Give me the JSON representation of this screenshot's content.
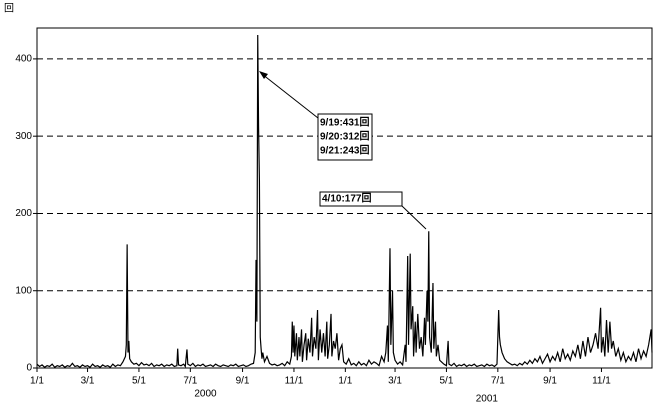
{
  "chart_data": {
    "type": "line",
    "y_unit": "回",
    "xlim": [
      0,
      730
    ],
    "ylim": [
      0,
      440
    ],
    "xticks": [
      {
        "value": 0,
        "label": "1/1"
      },
      {
        "value": 60,
        "label": "3/1"
      },
      {
        "value": 121,
        "label": "5/1"
      },
      {
        "value": 182,
        "label": "7/1"
      },
      {
        "value": 244,
        "label": "9/1"
      },
      {
        "value": 305,
        "label": "11/1"
      },
      {
        "value": 366,
        "label": "1/1"
      },
      {
        "value": 425,
        "label": "3/1"
      },
      {
        "value": 486,
        "label": "5/1"
      },
      {
        "value": 547,
        "label": "7/1"
      },
      {
        "value": 609,
        "label": "9/1"
      },
      {
        "value": 670,
        "label": "11/1"
      }
    ],
    "years": [
      {
        "value": 200,
        "label": "2000"
      },
      {
        "value": 534,
        "label": "2001"
      }
    ],
    "yticks": [
      0,
      100,
      200,
      300,
      400
    ],
    "grid": true,
    "annotations": [
      "9/19:431回",
      "9/20:312回",
      "9/21:243回",
      "4/10:177回"
    ],
    "series": [
      {
        "color": "#000000",
        "x": [
          0,
          3,
          6,
          9,
          12,
          15,
          18,
          21,
          24,
          27,
          30,
          33,
          36,
          39,
          42,
          45,
          48,
          51,
          54,
          57,
          60,
          63,
          66,
          69,
          72,
          75,
          78,
          81,
          84,
          87,
          90,
          93,
          96,
          99,
          102,
          105,
          106,
          107,
          108,
          109,
          110,
          112,
          115,
          118,
          121,
          124,
          127,
          130,
          133,
          136,
          139,
          142,
          145,
          148,
          151,
          154,
          157,
          160,
          163,
          166,
          167,
          168,
          171,
          174,
          176,
          178,
          179,
          182,
          185,
          188,
          191,
          194,
          197,
          200,
          203,
          206,
          209,
          212,
          215,
          218,
          221,
          224,
          227,
          230,
          233,
          236,
          239,
          242,
          245,
          248,
          251,
          254,
          257,
          259,
          260,
          261,
          262,
          263,
          264,
          265,
          266,
          267,
          268,
          270,
          273,
          276,
          279,
          282,
          285,
          288,
          291,
          294,
          297,
          300,
          302,
          303,
          304,
          305,
          306,
          308,
          309,
          311,
          312,
          314,
          315,
          317,
          319,
          320,
          322,
          324,
          326,
          327,
          329,
          331,
          333,
          334,
          336,
          338,
          340,
          342,
          344,
          345,
          347,
          349,
          350,
          352,
          354,
          356,
          358,
          360,
          362,
          364,
          367,
          370,
          373,
          376,
          379,
          382,
          385,
          388,
          391,
          394,
          397,
          400,
          403,
          406,
          409,
          412,
          414,
          416,
          417,
          419,
          420,
          422,
          423,
          425,
          428,
          431,
          434,
          437,
          438,
          440,
          441,
          443,
          444,
          446,
          447,
          449,
          450,
          452,
          454,
          456,
          458,
          460,
          461,
          463,
          464,
          465,
          466,
          468,
          470,
          471,
          473,
          474,
          476,
          478,
          480,
          483,
          486,
          488,
          489,
          492,
          495,
          498,
          501,
          504,
          507,
          510,
          513,
          516,
          519,
          522,
          525,
          528,
          531,
          534,
          537,
          540,
          543,
          546,
          548,
          549,
          550,
          552,
          555,
          558,
          561,
          564,
          567,
          570,
          573,
          576,
          579,
          582,
          585,
          588,
          591,
          594,
          597,
          600,
          603,
          606,
          609,
          612,
          615,
          618,
          621,
          624,
          627,
          630,
          633,
          636,
          639,
          642,
          645,
          648,
          651,
          654,
          657,
          660,
          663,
          666,
          669,
          670,
          672,
          674,
          676,
          678,
          680,
          682,
          684,
          687,
          690,
          693,
          696,
          699,
          702,
          705,
          708,
          711,
          714,
          717,
          720,
          723,
          726,
          729,
          730
        ],
        "values": [
          5,
          2,
          4,
          1,
          3,
          2,
          5,
          1,
          3,
          2,
          4,
          1,
          3,
          2,
          6,
          2,
          3,
          1,
          4,
          2,
          3,
          1,
          5,
          2,
          3,
          1,
          4,
          2,
          3,
          1,
          5,
          2,
          4,
          3,
          8,
          15,
          30,
          160,
          20,
          35,
          12,
          8,
          5,
          6,
          3,
          7,
          4,
          5,
          3,
          6,
          2,
          4,
          3,
          5,
          2,
          4,
          3,
          5,
          2,
          3,
          25,
          4,
          3,
          5,
          2,
          24,
          5,
          3,
          6,
          2,
          4,
          3,
          5,
          2,
          3,
          4,
          2,
          5,
          3,
          2,
          4,
          3,
          2,
          4,
          3,
          5,
          2,
          3,
          4,
          2,
          3,
          5,
          6,
          20,
          140,
          60,
          431,
          312,
          243,
          40,
          25,
          12,
          20,
          8,
          15,
          6,
          4,
          5,
          3,
          4,
          6,
          3,
          8,
          5,
          15,
          60,
          20,
          55,
          15,
          45,
          10,
          40,
          15,
          50,
          8,
          30,
          45,
          10,
          38,
          20,
          65,
          15,
          40,
          25,
          75,
          10,
          50,
          20,
          45,
          15,
          60,
          12,
          30,
          70,
          15,
          35,
          25,
          45,
          10,
          25,
          30,
          8,
          5,
          12,
          4,
          6,
          3,
          8,
          4,
          6,
          3,
          10,
          5,
          8,
          6,
          3,
          15,
          8,
          20,
          55,
          8,
          155,
          30,
          100,
          20,
          10,
          5,
          8,
          4,
          30,
          8,
          145,
          30,
          148,
          50,
          80,
          15,
          60,
          20,
          70,
          25,
          40,
          15,
          65,
          30,
          100,
          60,
          177,
          40,
          20,
          110,
          25,
          60,
          15,
          30,
          10,
          8,
          5,
          3,
          35,
          5,
          3,
          6,
          2,
          4,
          3,
          5,
          2,
          4,
          3,
          5,
          2,
          3,
          4,
          2,
          5,
          3,
          4,
          2,
          5,
          75,
          40,
          30,
          20,
          12,
          8,
          6,
          4,
          5,
          3,
          6,
          4,
          8,
          5,
          10,
          6,
          12,
          8,
          15,
          6,
          12,
          18,
          8,
          15,
          10,
          20,
          8,
          25,
          12,
          18,
          10,
          22,
          15,
          30,
          12,
          35,
          15,
          40,
          20,
          30,
          45,
          25,
          78,
          20,
          40,
          15,
          62,
          20,
          60,
          25,
          35,
          15,
          25,
          10,
          20,
          8,
          15,
          10,
          20,
          8,
          25,
          12,
          22,
          15,
          30,
          50,
          20
        ]
      }
    ]
  }
}
